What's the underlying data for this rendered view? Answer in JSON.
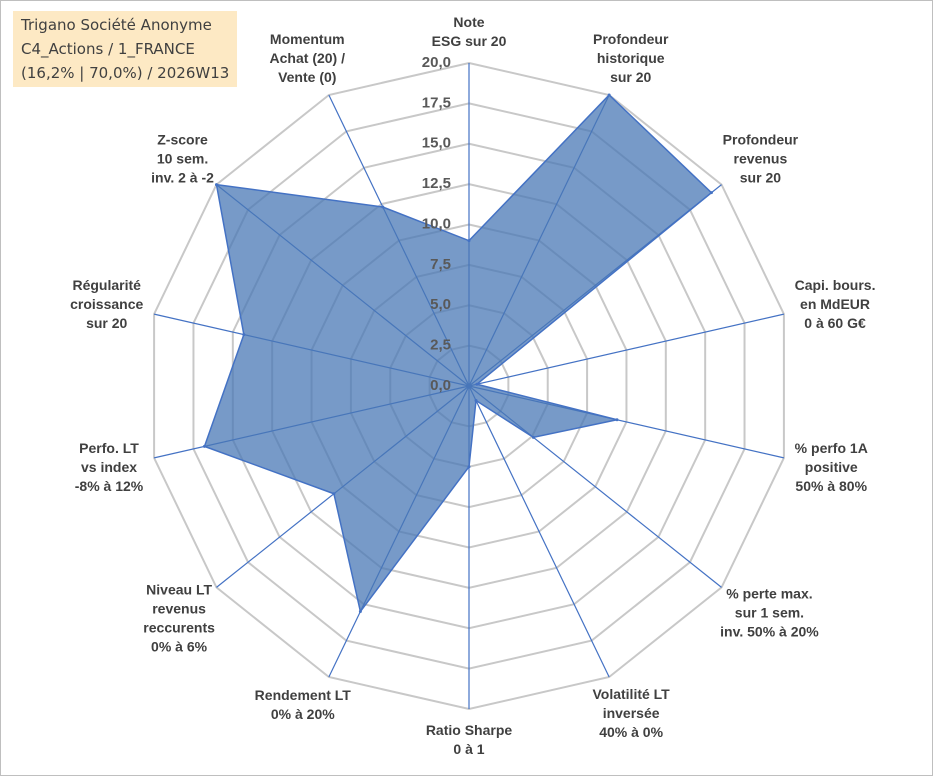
{
  "chart_data": {
    "type": "radar",
    "title": "Trigano Société Anonyme\nC4_Actions / 1_FRANCE\n(16,2% | 70,0%) / 2026W13",
    "categories": [
      "Note\nESG sur 20",
      "Profondeur\nhistorique\nsur 20",
      "Profondeur\nrevenus\nsur 20",
      "Capi. bours.\nen MdEUR\n0 à 60 G€",
      "% perfo 1A\npositive\n50% à 80%",
      "% perte max.\nsur 1 sem.\ninv. 50% à 20%",
      "Volatilité LT\ninversée\n40% à 0%",
      "Ratio Sharpe\n0 à 1",
      "Rendement LT\n0% à 20%",
      "Niveau LT\nrevenus\nreccurents\n0% à 6%",
      "Perfo. LT\nvs index\n-8% à 12%",
      "Régularité\ncroissance\nsur 20",
      "Z-score\n10 sem.\ninv. 2 à -2",
      "Momentum\nAchat (20) /\nVente (0)"
    ],
    "values": [
      9.0,
      20,
      19.2,
      0.5,
      9.4,
      5.1,
      1.0,
      5.0,
      15.5,
      10.7,
      16.8,
      14.3,
      20,
      12.3
    ],
    "color": "#4a78b5",
    "ylim": [
      0,
      20
    ],
    "yticks": [
      {
        "value": 0,
        "label": "0,0"
      },
      {
        "value": 2.5,
        "label": "2,5"
      },
      {
        "value": 5,
        "label": "5,0"
      },
      {
        "value": 7.5,
        "label": "7,5"
      },
      {
        "value": 10,
        "label": "10,0"
      },
      {
        "value": 12.5,
        "label": "12,5"
      },
      {
        "value": 15,
        "label": "15,0"
      },
      {
        "value": 17.5,
        "label": "17,5"
      },
      {
        "value": 20,
        "label": "20,0"
      }
    ],
    "grid": true
  }
}
